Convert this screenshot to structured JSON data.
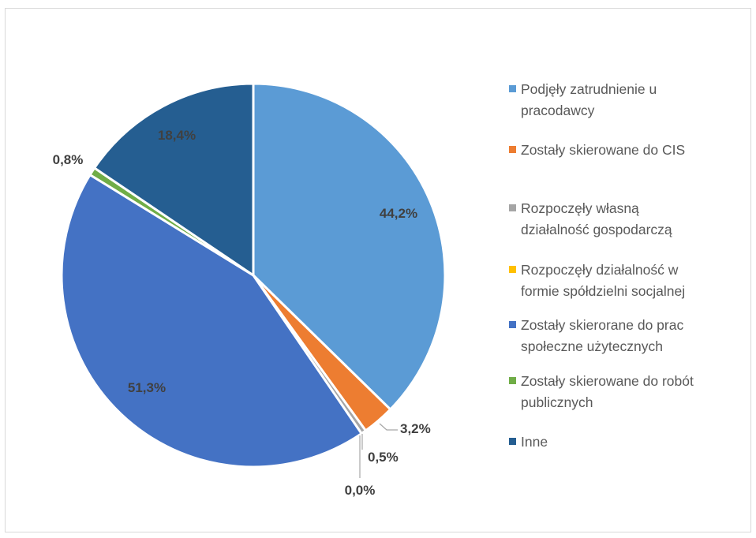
{
  "chart_data": {
    "type": "pie",
    "title": "",
    "slices": [
      {
        "label": "Podjęły zatrudnienie u pracodawcy",
        "value": 44.2,
        "display": "44,2%",
        "color": "#5b9bd5"
      },
      {
        "label": "Zostały skierowane do CIS",
        "value": 3.2,
        "display": "3,2%",
        "color": "#ed7d31"
      },
      {
        "label": "Rozpoczęły własną działalność gospodarczą",
        "value": 0.5,
        "display": "0,5%",
        "color": "#a5a5a5"
      },
      {
        "label": "Rozpoczęły działalność w formie spółdzielni socjalnej",
        "value": 0.0,
        "display": "0,0%",
        "color": "#ffc000"
      },
      {
        "label": "Zostały skierorane do prac społeczne użytecznych",
        "value": 51.3,
        "display": "51,3%",
        "color": "#4472c4"
      },
      {
        "label": "Zostały skierowane do robót publicznych",
        "value": 0.8,
        "display": "0,8%",
        "color": "#70ad47"
      },
      {
        "label": "Inne",
        "value": 18.4,
        "display": "18,4%",
        "color": "#255e91"
      }
    ],
    "legend_position": "right"
  },
  "legend": {
    "items": [
      {
        "lines": [
          "Podjęły zatrudnienie u",
          "pracodawcy"
        ]
      },
      {
        "lines": [
          "Zostały skierowane do CIS"
        ]
      },
      {
        "lines": [
          "Rozpoczęły własną",
          "działalność gospodarczą"
        ]
      },
      {
        "lines": [
          "Rozpoczęły działalność w",
          "formie spółdzielni socjalnej"
        ]
      },
      {
        "lines": [
          "Zostały skierorane do prac",
          "społeczne użytecznych"
        ]
      },
      {
        "lines": [
          "Zostały skierowane do robót",
          "publicznych"
        ]
      },
      {
        "lines": [
          "Inne"
        ]
      }
    ]
  }
}
